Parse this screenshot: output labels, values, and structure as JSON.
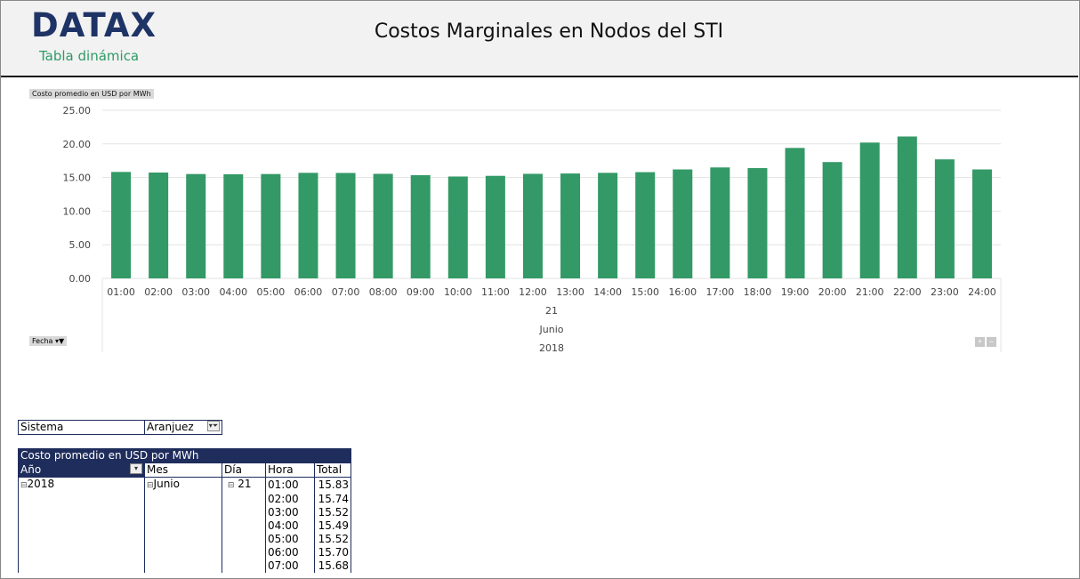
{
  "header": {
    "logo": "DATAX",
    "subtitle": "Tabla dinámica",
    "title": "Costos Marginales en Nodos del STI"
  },
  "chart_data": {
    "type": "bar",
    "title": "",
    "ylabel": "Costo promedio en USD por MWh",
    "xlabel": "Fecha",
    "ylim": [
      0,
      25
    ],
    "yticks": [
      "0.00",
      "5.00",
      "10.00",
      "15.00",
      "20.00",
      "25.00"
    ],
    "grid": true,
    "color": "#339966",
    "categories": [
      "01:00",
      "02:00",
      "03:00",
      "04:00",
      "05:00",
      "06:00",
      "07:00",
      "08:00",
      "09:00",
      "10:00",
      "11:00",
      "12:00",
      "13:00",
      "14:00",
      "15:00",
      "16:00",
      "17:00",
      "18:00",
      "19:00",
      "20:00",
      "21:00",
      "22:00",
      "23:00",
      "24:00"
    ],
    "values": [
      15.83,
      15.74,
      15.52,
      15.49,
      15.52,
      15.7,
      15.68,
      15.55,
      15.35,
      15.15,
      15.25,
      15.55,
      15.6,
      15.7,
      15.8,
      16.2,
      16.5,
      16.4,
      19.4,
      17.3,
      20.2,
      21.1,
      17.7,
      16.2
    ],
    "group_labels": {
      "day": "21",
      "month": "Junio",
      "year": "2018"
    }
  },
  "chart_controls": {
    "field_button": "Fecha",
    "expand": "+",
    "collapse": "−"
  },
  "filter": {
    "label": "Sistema",
    "value": "Aranjuez"
  },
  "pivot": {
    "title": "Costo promedio en USD por MWh",
    "columns": [
      "Año",
      "Mes",
      "Día",
      "Hora",
      "Total"
    ],
    "year": "2018",
    "month": "Junio",
    "day": "21",
    "rows": [
      {
        "hora": "01:00",
        "total": "15.83"
      },
      {
        "hora": "02:00",
        "total": "15.74"
      },
      {
        "hora": "03:00",
        "total": "15.52"
      },
      {
        "hora": "04:00",
        "total": "15.49"
      },
      {
        "hora": "05:00",
        "total": "15.52"
      },
      {
        "hora": "06:00",
        "total": "15.70"
      },
      {
        "hora": "07:00",
        "total": "15.68"
      }
    ]
  }
}
